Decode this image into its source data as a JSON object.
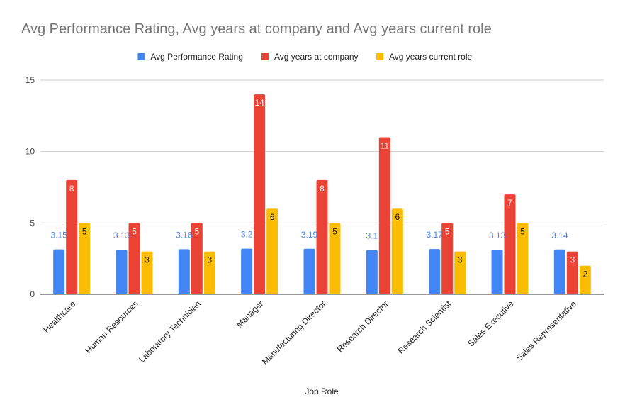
{
  "chart_data": {
    "type": "bar",
    "title": "Avg Performance Rating, Avg years at company and Avg years current role",
    "xlabel": "Job Role",
    "ylabel": "",
    "ylim": [
      0,
      15
    ],
    "yticks": [
      0,
      5,
      10,
      15
    ],
    "grid": true,
    "legend_position": "top",
    "categories": [
      "Healthcare",
      "Human Resources",
      "Laboratory Technician",
      "Manager",
      "Manufacturing Director",
      "Research Director",
      "Research Scientist",
      "Sales Executive",
      "Sales Representative"
    ],
    "series": [
      {
        "name": "Avg Performance Rating",
        "color": "#4285F4",
        "label_color": "#4285F4",
        "values": [
          3.15,
          3.13,
          3.16,
          3.2,
          3.19,
          3.1,
          3.17,
          3.13,
          3.14
        ],
        "labels": [
          "3.15",
          "3.13",
          "3.16",
          "3.2",
          "3.19",
          "3.1",
          "3.17",
          "3.13",
          "3.14"
        ]
      },
      {
        "name": "Avg years at company",
        "color": "#EA4335",
        "label_color": "#ffffff",
        "values": [
          8,
          5,
          5,
          14,
          8,
          11,
          5,
          7,
          3
        ],
        "labels": [
          "8",
          "5",
          "5",
          "14",
          "8",
          "11",
          "5",
          "7",
          "3"
        ]
      },
      {
        "name": "Avg years current role",
        "color": "#FBBC04",
        "label_color": "#202124",
        "values": [
          5,
          3,
          3,
          6,
          5,
          6,
          3,
          5,
          2
        ],
        "labels": [
          "5",
          "3",
          "3",
          "6",
          "5",
          "6",
          "3",
          "5",
          "2"
        ]
      }
    ]
  }
}
